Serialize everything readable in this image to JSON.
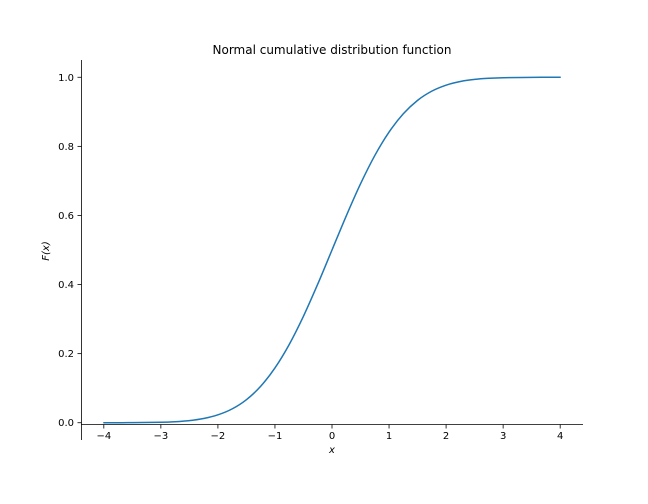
{
  "chart_data": {
    "type": "line",
    "title": "Normal cumulative distribution function",
    "xlabel": "x",
    "ylabel": "F(x)",
    "xlim": [
      -4.4,
      4.4
    ],
    "ylim": [
      -0.05,
      1.05
    ],
    "x_ticks": [
      -4,
      -3,
      -2,
      -1,
      0,
      1,
      2,
      3,
      4
    ],
    "x_tick_labels": [
      "−4",
      "−3",
      "−2",
      "−1",
      "0",
      "1",
      "2",
      "3",
      "4"
    ],
    "y_ticks": [
      0.0,
      0.2,
      0.4,
      0.6,
      0.8,
      1.0
    ],
    "y_tick_labels": [
      "0.0",
      "0.2",
      "0.4",
      "0.6",
      "0.8",
      "1.0"
    ],
    "grid": false,
    "series": [
      {
        "color": "#1f77b4",
        "x": [
          -4.0,
          -3.5,
          -3.0,
          -2.75,
          -2.5,
          -2.25,
          -2.0,
          -1.75,
          -1.5,
          -1.25,
          -1.0,
          -0.75,
          -0.5,
          -0.25,
          0.0,
          0.25,
          0.5,
          0.75,
          1.0,
          1.25,
          1.5,
          1.75,
          2.0,
          2.25,
          2.5,
          2.75,
          3.0,
          3.5,
          4.0
        ],
        "y": [
          0.0,
          0.0002,
          0.0013,
          0.003,
          0.0062,
          0.0122,
          0.0228,
          0.0401,
          0.0668,
          0.1056,
          0.1587,
          0.2266,
          0.3085,
          0.4013,
          0.5,
          0.5987,
          0.6915,
          0.7734,
          0.8413,
          0.8944,
          0.9332,
          0.9599,
          0.9772,
          0.9878,
          0.9938,
          0.997,
          0.9987,
          0.9998,
          1.0
        ]
      }
    ]
  }
}
